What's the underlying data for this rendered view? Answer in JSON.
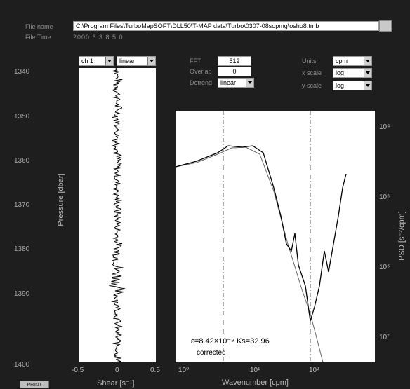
{
  "header": {
    "file_label": "File name",
    "file_path": "C:\\Program Files\\TurboMapSOFT\\DLL50\\T-MAP data\\Turbo\\0307-08sopmg\\osho8.tmb",
    "time_label": "File Time",
    "time_value": "2000  6  3  8  5  0"
  },
  "left_controls": {
    "channel": "ch 1",
    "scale": "linear"
  },
  "params": {
    "fft_label": "FFT",
    "fft_value": "512",
    "overlap_label": "Overlap",
    "overlap_value": "0",
    "detrend_label": "Detrend",
    "detrend_value": "linear"
  },
  "right_controls": {
    "units_label": "Units",
    "units_value": "cpm",
    "xscale_label": "x scale",
    "xscale_value": "log",
    "yscale_label": "y scale",
    "yscale_value": "log"
  },
  "pressure_axis": {
    "label": "Pressure [dbar]",
    "ticks": [
      "1340",
      "1350",
      "1360",
      "1370",
      "1380",
      "1390",
      "1400"
    ]
  },
  "shear_axis": {
    "label": "Shear [s⁻¹]",
    "ticks": [
      "-0.5",
      "0",
      "0.5"
    ]
  },
  "spectrum_axis": {
    "x_label": "Wavenumber [cpm]",
    "x_ticks": [
      "10⁰",
      "10¹",
      "10²"
    ],
    "y_label": "PSD [s⁻²/cpm]",
    "y_ticks": [
      "10⁴",
      "10⁵",
      "10⁶",
      "10⁷"
    ]
  },
  "annotation": {
    "epsilon": "ε=8.42×10⁻⁹  Ks=32.96",
    "status": "corrected"
  },
  "footer": {
    "button_label": "PRINT"
  }
}
